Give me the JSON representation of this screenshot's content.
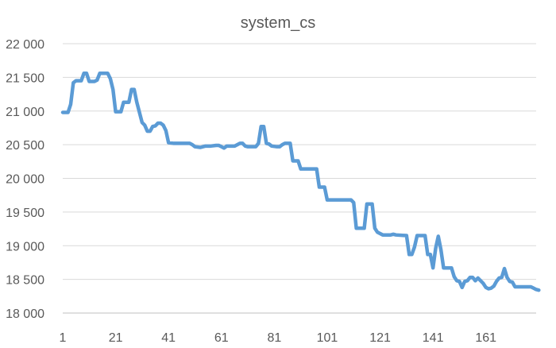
{
  "chart_data": {
    "type": "line",
    "title": "system_cs",
    "xlabel": "",
    "ylabel": "",
    "ylim": [
      18000,
      22000
    ],
    "xlim": [
      1,
      180
    ],
    "grid": true,
    "legend": "none",
    "x_tick_labels": [
      "1",
      "21",
      "41",
      "61",
      "81",
      "101",
      "121",
      "141",
      "161"
    ],
    "x_tick_values": [
      1,
      21,
      41,
      61,
      81,
      101,
      121,
      141,
      161
    ],
    "y_tick_labels": [
      "18 000",
      "18 500",
      "19 000",
      "19 500",
      "20 000",
      "20 500",
      "21 000",
      "21 500",
      "22 000"
    ],
    "y_tick_values": [
      18000,
      18500,
      19000,
      19500,
      20000,
      20500,
      21000,
      21500,
      22000
    ],
    "colors": {
      "line": "#5B9BD5",
      "grid": "#D9D9D9",
      "axis": "#BFBFBF",
      "text": "#595959"
    },
    "series": [
      {
        "values": [
          [
            1,
            20980
          ],
          [
            3,
            20980
          ],
          [
            4,
            21100
          ],
          [
            5,
            21420
          ],
          [
            6,
            21450
          ],
          [
            8,
            21450
          ],
          [
            9,
            21560
          ],
          [
            10,
            21560
          ],
          [
            11,
            21440
          ],
          [
            13,
            21440
          ],
          [
            14,
            21460
          ],
          [
            15,
            21560
          ],
          [
            18,
            21560
          ],
          [
            19,
            21480
          ],
          [
            20,
            21320
          ],
          [
            21,
            20990
          ],
          [
            23,
            20990
          ],
          [
            24,
            21130
          ],
          [
            26,
            21130
          ],
          [
            27,
            21320
          ],
          [
            28,
            21320
          ],
          [
            29,
            21130
          ],
          [
            31,
            20830
          ],
          [
            32,
            20790
          ],
          [
            33,
            20700
          ],
          [
            34,
            20700
          ],
          [
            35,
            20770
          ],
          [
            36,
            20780
          ],
          [
            37,
            20820
          ],
          [
            38,
            20820
          ],
          [
            39,
            20790
          ],
          [
            40,
            20710
          ],
          [
            41,
            20530
          ],
          [
            43,
            20520
          ],
          [
            44,
            20520
          ],
          [
            46,
            20520
          ],
          [
            49,
            20520
          ],
          [
            50,
            20500
          ],
          [
            51,
            20470
          ],
          [
            53,
            20460
          ],
          [
            55,
            20480
          ],
          [
            57,
            20480
          ],
          [
            59,
            20490
          ],
          [
            60,
            20490
          ],
          [
            61,
            20470
          ],
          [
            62,
            20450
          ],
          [
            63,
            20480
          ],
          [
            66,
            20480
          ],
          [
            68,
            20520
          ],
          [
            69,
            20520
          ],
          [
            70,
            20480
          ],
          [
            71,
            20470
          ],
          [
            74,
            20470
          ],
          [
            75,
            20520
          ],
          [
            76,
            20770
          ],
          [
            77,
            20770
          ],
          [
            78,
            20520
          ],
          [
            79,
            20510
          ],
          [
            80,
            20480
          ],
          [
            82,
            20470
          ],
          [
            83,
            20470
          ],
          [
            84,
            20500
          ],
          [
            85,
            20520
          ],
          [
            87,
            20520
          ],
          [
            88,
            20260
          ],
          [
            90,
            20260
          ],
          [
            91,
            20140
          ],
          [
            97,
            20140
          ],
          [
            98,
            19870
          ],
          [
            100,
            19870
          ],
          [
            101,
            19680
          ],
          [
            110,
            19680
          ],
          [
            111,
            19640
          ],
          [
            112,
            19260
          ],
          [
            115,
            19260
          ],
          [
            116,
            19620
          ],
          [
            118,
            19620
          ],
          [
            119,
            19260
          ],
          [
            120,
            19200
          ],
          [
            122,
            19160
          ],
          [
            125,
            19160
          ],
          [
            126,
            19170
          ],
          [
            127,
            19160
          ],
          [
            131,
            19150
          ],
          [
            132,
            18870
          ],
          [
            133,
            18870
          ],
          [
            134,
            18980
          ],
          [
            135,
            19150
          ],
          [
            138,
            19150
          ],
          [
            139,
            18870
          ],
          [
            140,
            18870
          ],
          [
            141,
            18670
          ],
          [
            142,
            18960
          ],
          [
            143,
            19140
          ],
          [
            144,
            18940
          ],
          [
            145,
            18670
          ],
          [
            148,
            18670
          ],
          [
            149,
            18540
          ],
          [
            150,
            18480
          ],
          [
            151,
            18470
          ],
          [
            152,
            18380
          ],
          [
            153,
            18470
          ],
          [
            154,
            18480
          ],
          [
            155,
            18530
          ],
          [
            156,
            18530
          ],
          [
            157,
            18480
          ],
          [
            158,
            18520
          ],
          [
            160,
            18440
          ],
          [
            161,
            18380
          ],
          [
            162,
            18360
          ],
          [
            163,
            18370
          ],
          [
            164,
            18400
          ],
          [
            165,
            18470
          ],
          [
            166,
            18520
          ],
          [
            167,
            18530
          ],
          [
            168,
            18660
          ],
          [
            169,
            18530
          ],
          [
            170,
            18470
          ],
          [
            171,
            18460
          ],
          [
            172,
            18390
          ],
          [
            178,
            18390
          ],
          [
            179,
            18370
          ],
          [
            180,
            18350
          ],
          [
            181,
            18340
          ]
        ]
      }
    ]
  }
}
